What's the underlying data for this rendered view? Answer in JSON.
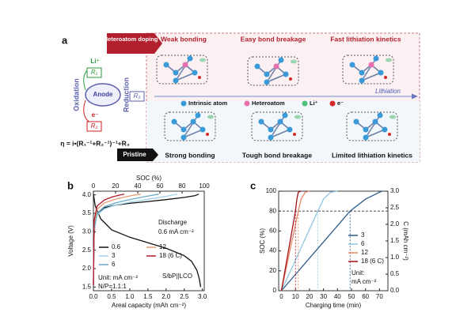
{
  "diagram": {
    "label": "a",
    "doping_tag": "Heteroatom doping",
    "doped_effects": [
      "Weak bonding",
      "Easy bond breakage",
      "Fast lithiation kinetics"
    ],
    "pristine_tag": "Pristine",
    "pristine_effects": [
      "Strong bonding",
      "Tough bond breakage",
      "Limited lithiation kinetics"
    ],
    "legend": [
      "Intrinsic atom",
      "Heteroatom",
      "Li⁺",
      "e⁻"
    ],
    "arrow_label": "Lithiation",
    "circuit": {
      "anode": "Anode",
      "left": "Oxidation",
      "right": "Reduction",
      "li": "Li⁺",
      "r1": "R₁",
      "e": "e⁻",
      "r2": "R₂",
      "r3": "R₃",
      "formula": "η = i•(R₁⁻¹+R₂⁻¹)⁻¹+R₃"
    }
  },
  "chart_data": [
    {
      "type": "line",
      "label": "b",
      "x_label": "Areal capacity (mAh cm⁻²)",
      "y_label": "Voltage (V)",
      "x2_label": "SOC (%)",
      "xlim": [
        0,
        3.05
      ],
      "xticks": [
        {
          "value": 0,
          "label": "0.0"
        },
        0.5,
        {
          "value": 1,
          "label": "1.0"
        },
        1.5,
        {
          "value": 2,
          "label": "2.0"
        },
        2.5,
        {
          "value": 3,
          "label": "3.0"
        }
      ],
      "x2lim": [
        0,
        100
      ],
      "x2ticks": [
        0,
        20,
        40,
        60,
        80,
        100
      ],
      "ylim": [
        1.4,
        4.1
      ],
      "yticks": [
        1.5,
        {
          "value": 2,
          "label": "2.0"
        },
        2.5,
        {
          "value": 3,
          "label": "3.0"
        },
        3.5,
        {
          "value": 4,
          "label": "4.0"
        }
      ],
      "legend": "lower-left",
      "annotations": [
        "Discharge",
        "0.6 mA cm⁻²",
        "Unit: mA cm⁻²",
        "N/P=1.1:1",
        "S/bP||LCO"
      ],
      "series": [
        {
          "name": "0.6",
          "color": "#111111",
          "x": [
            0,
            0.02,
            0.05,
            0.1,
            0.3,
            0.6,
            1.0,
            1.5,
            2.0,
            2.5,
            2.8,
            2.9,
            null,
            0,
            0.05,
            0.2,
            0.5,
            1.0,
            1.5,
            2.0,
            2.5,
            2.7,
            2.85,
            2.92,
            2.95
          ],
          "values": [
            1.55,
            2.9,
            3.3,
            3.5,
            3.65,
            3.72,
            3.77,
            3.82,
            3.87,
            3.93,
            3.98,
            4.02,
            null,
            4.02,
            3.7,
            3.35,
            3.05,
            2.85,
            2.7,
            2.55,
            2.35,
            2.2,
            1.95,
            1.7,
            1.5
          ]
        },
        {
          "name": "3",
          "color": "#9fd3ea",
          "x": [
            0,
            0.02,
            0.1,
            0.3,
            0.6,
            1.0,
            1.5,
            2.0,
            2.3
          ],
          "values": [
            1.55,
            3.0,
            3.45,
            3.62,
            3.72,
            3.8,
            3.88,
            3.96,
            4.02
          ]
        },
        {
          "name": "6",
          "color": "#6aa9c9",
          "x": [
            0,
            0.02,
            0.1,
            0.3,
            0.6,
            1.0,
            1.4,
            1.8
          ],
          "values": [
            1.55,
            3.1,
            3.5,
            3.68,
            3.78,
            3.87,
            3.95,
            4.02
          ]
        },
        {
          "name": "12",
          "color": "#e39a72",
          "x": [
            0,
            0.02,
            0.1,
            0.3,
            0.6,
            0.9,
            1.1,
            1.3
          ],
          "values": [
            1.55,
            3.2,
            3.6,
            3.78,
            3.88,
            3.95,
            3.99,
            4.02
          ]
        },
        {
          "name": "18 (6 C)",
          "color": "#b2182b",
          "x": [
            0,
            0.02,
            0.1,
            0.3,
            0.5,
            0.7,
            0.85
          ],
          "values": [
            1.55,
            3.3,
            3.7,
            3.86,
            3.94,
            3.99,
            4.02
          ]
        }
      ]
    },
    {
      "type": "line",
      "label": "c",
      "x_label": "Charging time (min)",
      "y_label": "SOC (%)",
      "y2_label": "C (mAh cm⁻²)",
      "xlim": [
        -2,
        76
      ],
      "xticks": [
        0,
        10,
        20,
        30,
        40,
        50,
        60,
        70
      ],
      "ylim": [
        0,
        100
      ],
      "yticks": [
        0,
        20,
        40,
        60,
        80,
        100
      ],
      "y2lim": [
        0,
        3
      ],
      "y2ticks": [
        {
          "value": 0,
          "label": "0.0"
        },
        0.5,
        {
          "value": 1,
          "label": "1.0"
        },
        1.5,
        {
          "value": 2,
          "label": "2.0"
        },
        2.5,
        {
          "value": 3,
          "label": "3.0"
        }
      ],
      "hline": 80,
      "legend": "right",
      "annotations": [
        "Unit:",
        "mA cm⁻²"
      ],
      "series": [
        {
          "name": "3",
          "color": "#2b5a8a",
          "x": [
            0,
            49,
            60,
            70,
            72
          ],
          "values": [
            0,
            80,
            92,
            99,
            100
          ]
        },
        {
          "name": "6",
          "color": "#8cc5df",
          "x": [
            0,
            26,
            30,
            35,
            40
          ],
          "values": [
            0,
            80,
            92,
            99,
            100
          ]
        },
        {
          "name": "12",
          "color": "#e8896c",
          "x": [
            0,
            12,
            14,
            17,
            20
          ],
          "values": [
            0,
            80,
            92,
            99,
            100
          ]
        },
        {
          "name": "18 (6 C)",
          "color": "#a50f15",
          "x": [
            0,
            10,
            11,
            12,
            14
          ],
          "values": [
            0,
            80,
            92,
            99,
            100
          ]
        }
      ]
    }
  ]
}
